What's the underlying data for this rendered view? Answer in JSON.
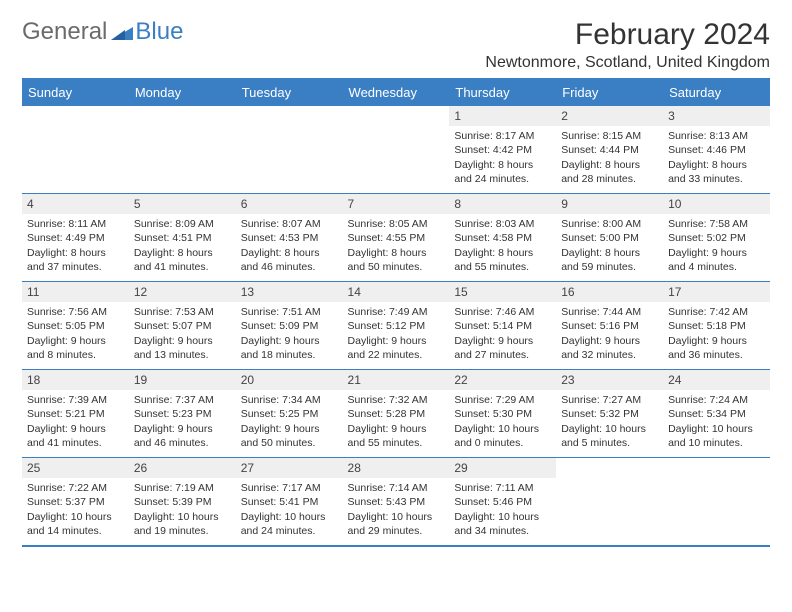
{
  "logo": {
    "word1": "General",
    "word2": "Blue"
  },
  "title": "February 2024",
  "location": "Newtonmore, Scotland, United Kingdom",
  "colors": {
    "brand_blue": "#3a7fc4",
    "header_text": "#ffffff",
    "daybar_bg": "#efefef",
    "body_text": "#333333",
    "logo_gray": "#6b6b6b"
  },
  "day_names": [
    "Sunday",
    "Monday",
    "Tuesday",
    "Wednesday",
    "Thursday",
    "Friday",
    "Saturday"
  ],
  "weeks": [
    [
      {
        "n": "",
        "sr": "",
        "ss": "",
        "dl1": "",
        "dl2": ""
      },
      {
        "n": "",
        "sr": "",
        "ss": "",
        "dl1": "",
        "dl2": ""
      },
      {
        "n": "",
        "sr": "",
        "ss": "",
        "dl1": "",
        "dl2": ""
      },
      {
        "n": "",
        "sr": "",
        "ss": "",
        "dl1": "",
        "dl2": ""
      },
      {
        "n": "1",
        "sr": "Sunrise: 8:17 AM",
        "ss": "Sunset: 4:42 PM",
        "dl1": "Daylight: 8 hours",
        "dl2": "and 24 minutes."
      },
      {
        "n": "2",
        "sr": "Sunrise: 8:15 AM",
        "ss": "Sunset: 4:44 PM",
        "dl1": "Daylight: 8 hours",
        "dl2": "and 28 minutes."
      },
      {
        "n": "3",
        "sr": "Sunrise: 8:13 AM",
        "ss": "Sunset: 4:46 PM",
        "dl1": "Daylight: 8 hours",
        "dl2": "and 33 minutes."
      }
    ],
    [
      {
        "n": "4",
        "sr": "Sunrise: 8:11 AM",
        "ss": "Sunset: 4:49 PM",
        "dl1": "Daylight: 8 hours",
        "dl2": "and 37 minutes."
      },
      {
        "n": "5",
        "sr": "Sunrise: 8:09 AM",
        "ss": "Sunset: 4:51 PM",
        "dl1": "Daylight: 8 hours",
        "dl2": "and 41 minutes."
      },
      {
        "n": "6",
        "sr": "Sunrise: 8:07 AM",
        "ss": "Sunset: 4:53 PM",
        "dl1": "Daylight: 8 hours",
        "dl2": "and 46 minutes."
      },
      {
        "n": "7",
        "sr": "Sunrise: 8:05 AM",
        "ss": "Sunset: 4:55 PM",
        "dl1": "Daylight: 8 hours",
        "dl2": "and 50 minutes."
      },
      {
        "n": "8",
        "sr": "Sunrise: 8:03 AM",
        "ss": "Sunset: 4:58 PM",
        "dl1": "Daylight: 8 hours",
        "dl2": "and 55 minutes."
      },
      {
        "n": "9",
        "sr": "Sunrise: 8:00 AM",
        "ss": "Sunset: 5:00 PM",
        "dl1": "Daylight: 8 hours",
        "dl2": "and 59 minutes."
      },
      {
        "n": "10",
        "sr": "Sunrise: 7:58 AM",
        "ss": "Sunset: 5:02 PM",
        "dl1": "Daylight: 9 hours",
        "dl2": "and 4 minutes."
      }
    ],
    [
      {
        "n": "11",
        "sr": "Sunrise: 7:56 AM",
        "ss": "Sunset: 5:05 PM",
        "dl1": "Daylight: 9 hours",
        "dl2": "and 8 minutes."
      },
      {
        "n": "12",
        "sr": "Sunrise: 7:53 AM",
        "ss": "Sunset: 5:07 PM",
        "dl1": "Daylight: 9 hours",
        "dl2": "and 13 minutes."
      },
      {
        "n": "13",
        "sr": "Sunrise: 7:51 AM",
        "ss": "Sunset: 5:09 PM",
        "dl1": "Daylight: 9 hours",
        "dl2": "and 18 minutes."
      },
      {
        "n": "14",
        "sr": "Sunrise: 7:49 AM",
        "ss": "Sunset: 5:12 PM",
        "dl1": "Daylight: 9 hours",
        "dl2": "and 22 minutes."
      },
      {
        "n": "15",
        "sr": "Sunrise: 7:46 AM",
        "ss": "Sunset: 5:14 PM",
        "dl1": "Daylight: 9 hours",
        "dl2": "and 27 minutes."
      },
      {
        "n": "16",
        "sr": "Sunrise: 7:44 AM",
        "ss": "Sunset: 5:16 PM",
        "dl1": "Daylight: 9 hours",
        "dl2": "and 32 minutes."
      },
      {
        "n": "17",
        "sr": "Sunrise: 7:42 AM",
        "ss": "Sunset: 5:18 PM",
        "dl1": "Daylight: 9 hours",
        "dl2": "and 36 minutes."
      }
    ],
    [
      {
        "n": "18",
        "sr": "Sunrise: 7:39 AM",
        "ss": "Sunset: 5:21 PM",
        "dl1": "Daylight: 9 hours",
        "dl2": "and 41 minutes."
      },
      {
        "n": "19",
        "sr": "Sunrise: 7:37 AM",
        "ss": "Sunset: 5:23 PM",
        "dl1": "Daylight: 9 hours",
        "dl2": "and 46 minutes."
      },
      {
        "n": "20",
        "sr": "Sunrise: 7:34 AM",
        "ss": "Sunset: 5:25 PM",
        "dl1": "Daylight: 9 hours",
        "dl2": "and 50 minutes."
      },
      {
        "n": "21",
        "sr": "Sunrise: 7:32 AM",
        "ss": "Sunset: 5:28 PM",
        "dl1": "Daylight: 9 hours",
        "dl2": "and 55 minutes."
      },
      {
        "n": "22",
        "sr": "Sunrise: 7:29 AM",
        "ss": "Sunset: 5:30 PM",
        "dl1": "Daylight: 10 hours",
        "dl2": "and 0 minutes."
      },
      {
        "n": "23",
        "sr": "Sunrise: 7:27 AM",
        "ss": "Sunset: 5:32 PM",
        "dl1": "Daylight: 10 hours",
        "dl2": "and 5 minutes."
      },
      {
        "n": "24",
        "sr": "Sunrise: 7:24 AM",
        "ss": "Sunset: 5:34 PM",
        "dl1": "Daylight: 10 hours",
        "dl2": "and 10 minutes."
      }
    ],
    [
      {
        "n": "25",
        "sr": "Sunrise: 7:22 AM",
        "ss": "Sunset: 5:37 PM",
        "dl1": "Daylight: 10 hours",
        "dl2": "and 14 minutes."
      },
      {
        "n": "26",
        "sr": "Sunrise: 7:19 AM",
        "ss": "Sunset: 5:39 PM",
        "dl1": "Daylight: 10 hours",
        "dl2": "and 19 minutes."
      },
      {
        "n": "27",
        "sr": "Sunrise: 7:17 AM",
        "ss": "Sunset: 5:41 PM",
        "dl1": "Daylight: 10 hours",
        "dl2": "and 24 minutes."
      },
      {
        "n": "28",
        "sr": "Sunrise: 7:14 AM",
        "ss": "Sunset: 5:43 PM",
        "dl1": "Daylight: 10 hours",
        "dl2": "and 29 minutes."
      },
      {
        "n": "29",
        "sr": "Sunrise: 7:11 AM",
        "ss": "Sunset: 5:46 PM",
        "dl1": "Daylight: 10 hours",
        "dl2": "and 34 minutes."
      },
      {
        "n": "",
        "sr": "",
        "ss": "",
        "dl1": "",
        "dl2": ""
      },
      {
        "n": "",
        "sr": "",
        "ss": "",
        "dl1": "",
        "dl2": ""
      }
    ]
  ]
}
